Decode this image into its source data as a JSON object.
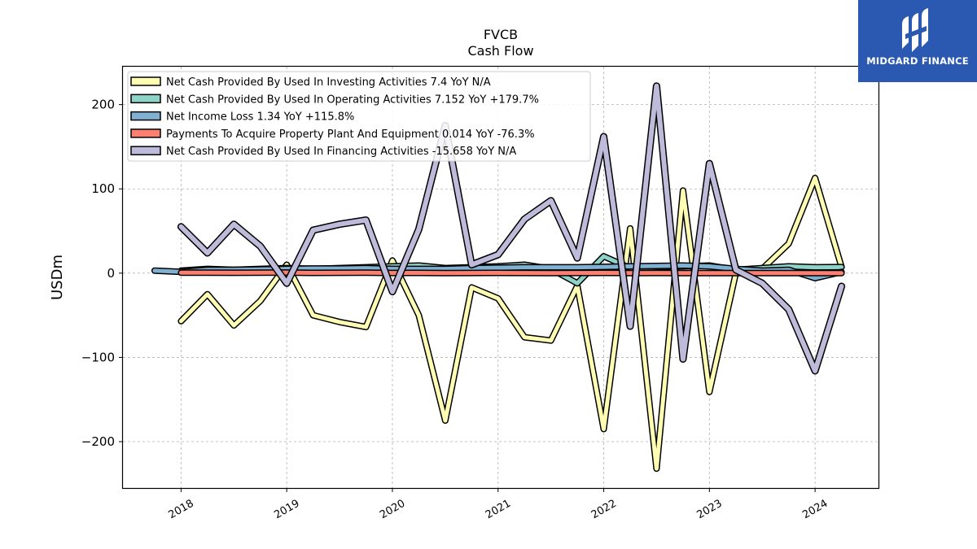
{
  "brand": {
    "name": "MIDGARD FINANCE",
    "bg": "#2b58b0"
  },
  "chart_data": {
    "type": "line",
    "title": "FVCB",
    "subtitle": "Cash Flow",
    "ylabel": "USDm",
    "xlabel": "",
    "ylim": [
      -255,
      245
    ],
    "xlim": [
      2017.45,
      2024.6
    ],
    "yticks": [
      -200,
      -100,
      0,
      100,
      200
    ],
    "ytick_labels": [
      "−200",
      "−100",
      "0",
      "100",
      "200"
    ],
    "xticks": [
      2018,
      2019,
      2020,
      2021,
      2022,
      2023,
      2024
    ],
    "xtick_labels": [
      "2018",
      "2019",
      "2020",
      "2021",
      "2022",
      "2023",
      "2024"
    ],
    "grid": true,
    "legend_position": "top-left",
    "series": [
      {
        "name": "Net Cash Provided By Used In Investing Activities  7.4 YoY N/A",
        "color": "#ffffb3",
        "width": 5,
        "x": [
          2018.0,
          2018.25,
          2018.5,
          2018.75,
          2019.0,
          2019.25,
          2019.5,
          2019.75,
          2020.0,
          2020.25,
          2020.5,
          2020.75,
          2021.0,
          2021.25,
          2021.5,
          2021.75,
          2022.0,
          2022.25,
          2022.5,
          2022.75,
          2023.0,
          2023.25,
          2023.5,
          2023.75,
          2024.0,
          2024.25
        ],
        "values": [
          -57,
          -25,
          -62,
          -33,
          10,
          -50,
          -58,
          -64,
          15,
          -50,
          -175,
          -17,
          -30,
          -76,
          -80,
          -15,
          -185,
          53,
          -232,
          98,
          -141,
          0,
          5,
          35,
          113,
          7.4
        ]
      },
      {
        "name": "Net Cash Provided By Used In Operating Activities  7.152 YoY +179.7%",
        "color": "#8dd3c7",
        "width": 5,
        "x": [
          2018.0,
          2018.25,
          2018.5,
          2018.75,
          2019.0,
          2019.25,
          2019.5,
          2019.75,
          2020.0,
          2020.25,
          2020.5,
          2020.75,
          2021.0,
          2021.25,
          2021.5,
          2021.75,
          2022.0,
          2022.25,
          2022.5,
          2022.75,
          2023.0,
          2023.25,
          2023.5,
          2023.75,
          2024.0,
          2024.25
        ],
        "values": [
          3,
          5,
          4,
          5,
          6,
          5,
          6,
          7,
          8,
          9,
          6,
          7,
          8,
          10,
          5,
          -12,
          20,
          6,
          7,
          8,
          9,
          4,
          6,
          8,
          7,
          7.152
        ]
      },
      {
        "name": "Net Income Loss  1.34 YoY +115.8%",
        "color": "#80b1d3",
        "width": 5,
        "x": [
          2017.75,
          2018.0,
          2018.25,
          2018.5,
          2018.75,
          2019.0,
          2019.25,
          2019.5,
          2019.75,
          2020.0,
          2020.25,
          2020.5,
          2020.75,
          2021.0,
          2021.25,
          2021.5,
          2021.75,
          2022.0,
          2022.25,
          2022.5,
          2022.75,
          2023.0,
          2023.25,
          2023.5,
          2023.75,
          2024.0,
          2024.25
        ],
        "values": [
          3,
          1.5,
          4,
          4,
          4.5,
          5,
          5.5,
          5.5,
          6,
          5,
          5,
          5,
          6,
          6.5,
          7,
          7,
          7,
          7.5,
          8,
          8.5,
          9,
          8,
          5,
          3,
          4,
          -6,
          1.34
        ]
      },
      {
        "name": "Payments To Acquire Property Plant And Equipment  0.014 YoY -76.3%",
        "color": "#fb8072",
        "width": 5,
        "x": [
          2018.0,
          2018.25,
          2018.5,
          2018.75,
          2019.0,
          2019.25,
          2019.5,
          2019.75,
          2020.0,
          2020.25,
          2020.5,
          2020.75,
          2021.0,
          2021.25,
          2021.5,
          2021.75,
          2022.0,
          2022.25,
          2022.5,
          2022.75,
          2023.0,
          2023.25,
          2023.5,
          2023.75,
          2024.0,
          2024.25
        ],
        "values": [
          0.5,
          0.6,
          0.4,
          0.5,
          0.7,
          0.3,
          0.4,
          0.5,
          0.2,
          0.3,
          0.1,
          0.2,
          0.3,
          0.2,
          0.1,
          0.2,
          0.3,
          0.1,
          0.2,
          0.1,
          0.1,
          0.1,
          0.05,
          0.1,
          0.06,
          0.014
        ]
      },
      {
        "name": "Net Cash Provided By Used In Financing Activities  -15.658 YoY N/A",
        "color": "#bebada",
        "width": 6,
        "x": [
          2018.0,
          2018.25,
          2018.5,
          2018.75,
          2019.0,
          2019.25,
          2019.5,
          2019.75,
          2020.0,
          2020.25,
          2020.5,
          2020.75,
          2021.0,
          2021.25,
          2021.5,
          2021.75,
          2022.0,
          2022.25,
          2022.5,
          2022.75,
          2023.0,
          2023.25,
          2023.5,
          2023.75,
          2024.0,
          2024.25
        ],
        "values": [
          55,
          24,
          58,
          32,
          -12,
          51,
          58,
          63,
          -22,
          52,
          175,
          10,
          22,
          64,
          86,
          18,
          162,
          -63,
          222,
          -102,
          130,
          4,
          -12,
          -43,
          -116,
          -15.658
        ]
      }
    ]
  }
}
